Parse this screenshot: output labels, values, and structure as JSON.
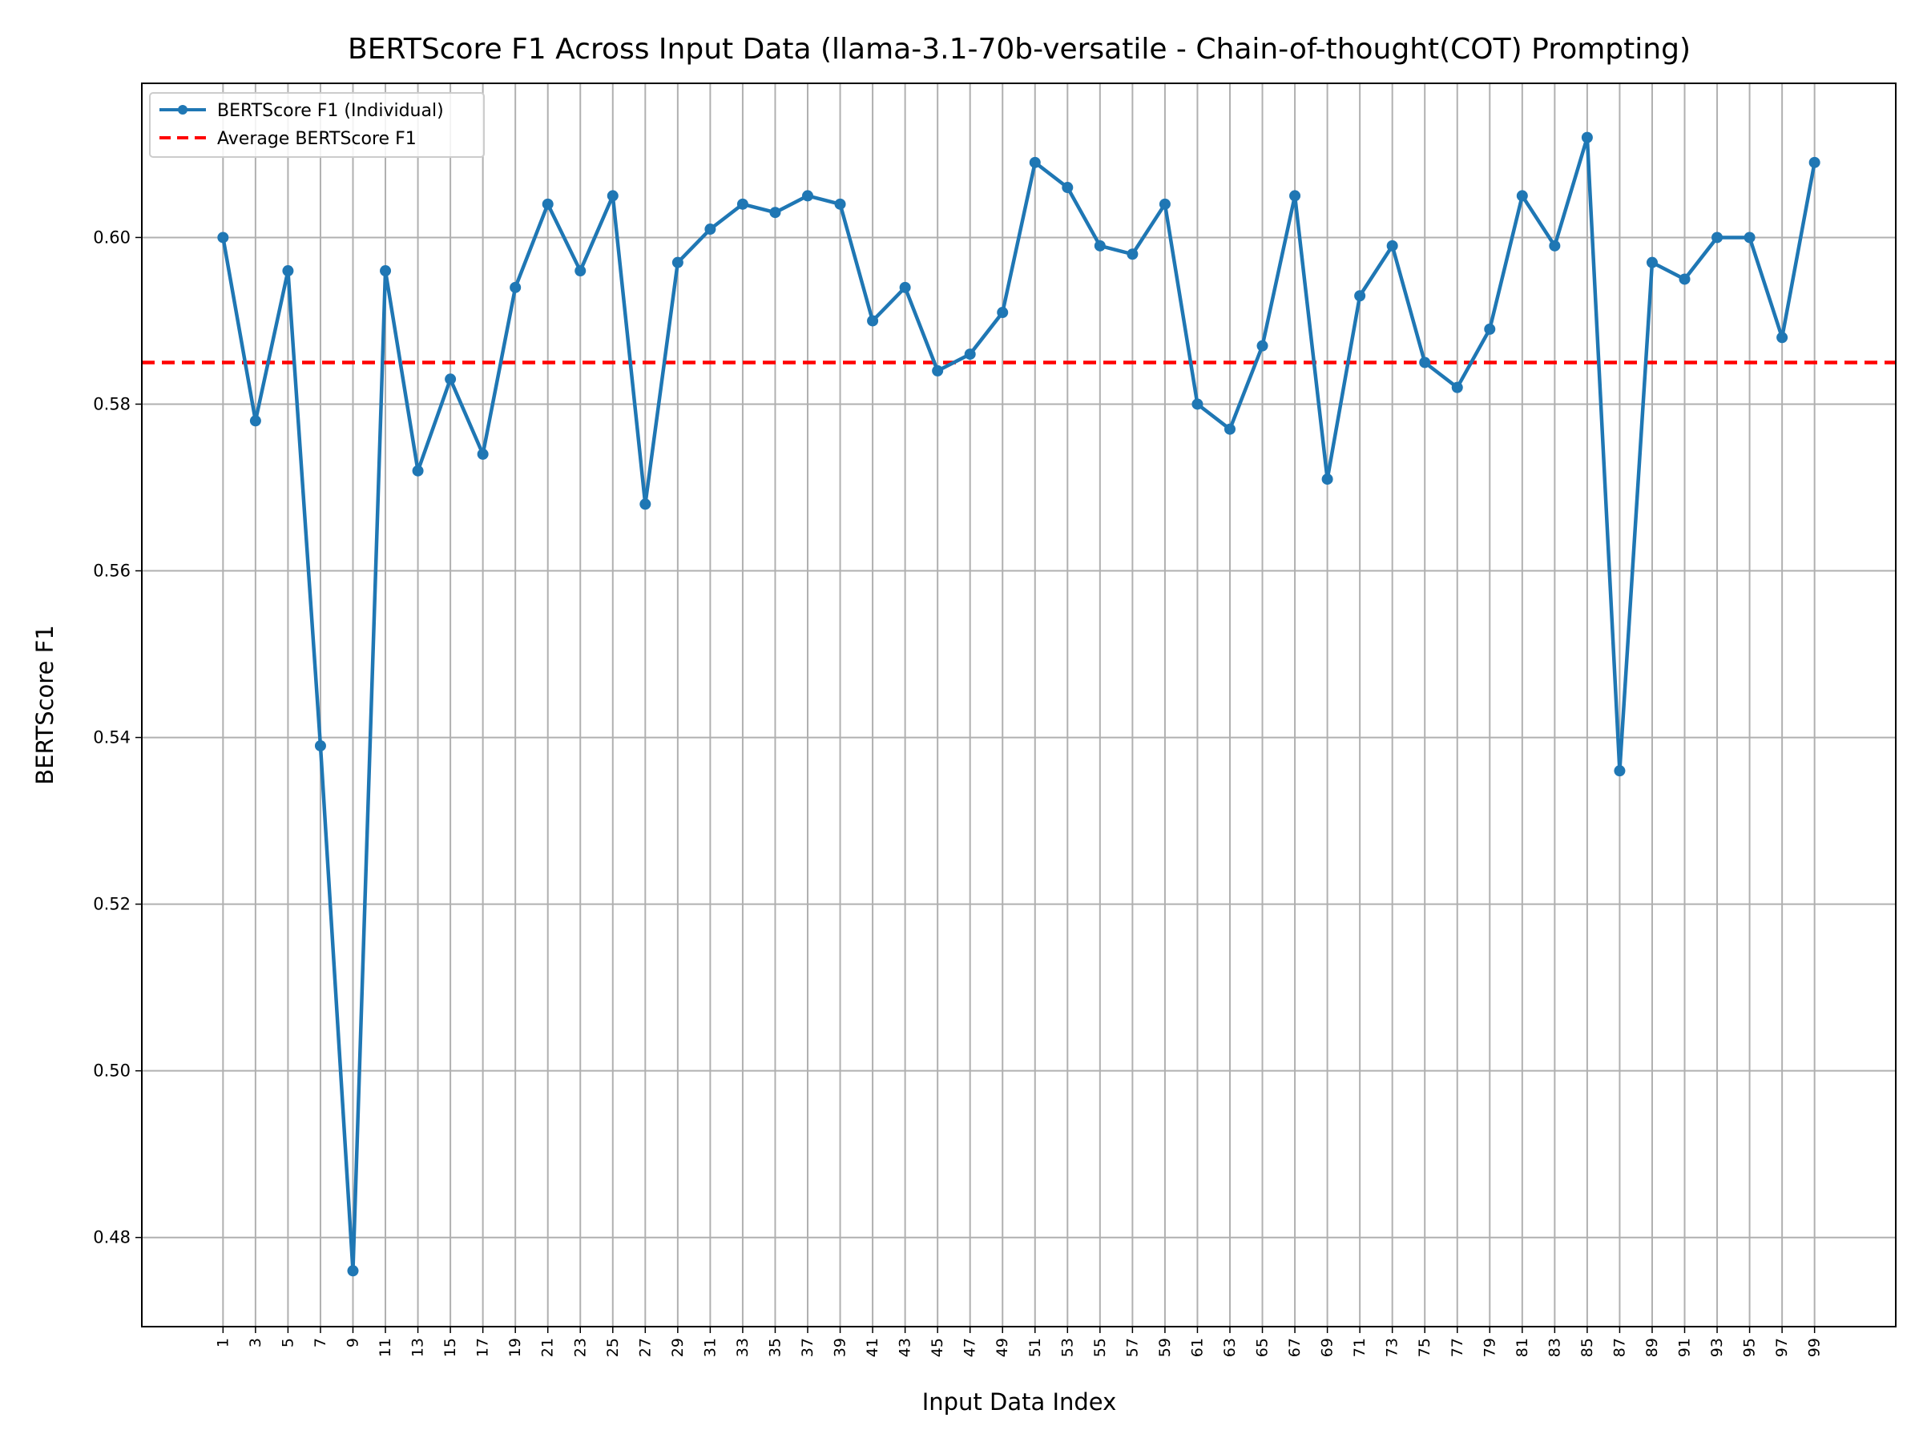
{
  "chart_data": {
    "type": "line",
    "title": "BERTScore F1 Across Input Data (llama-3.1-70b-versatile - Chain-of-thought(COT) Prompting)",
    "xlabel": "Input Data Index",
    "ylabel": "BERTScore F1",
    "x": [
      1,
      3,
      5,
      7,
      9,
      11,
      13,
      15,
      17,
      19,
      21,
      23,
      25,
      27,
      29,
      31,
      33,
      35,
      37,
      39,
      41,
      43,
      45,
      47,
      49,
      51,
      53,
      55,
      57,
      59,
      61,
      63,
      65,
      67,
      69,
      71,
      73,
      75,
      77,
      79,
      81,
      83,
      85,
      87,
      89,
      91,
      93,
      95,
      97,
      99
    ],
    "xticks": [
      "1",
      "3",
      "5",
      "7",
      "9",
      "11",
      "13",
      "15",
      "17",
      "19",
      "21",
      "23",
      "25",
      "27",
      "29",
      "31",
      "33",
      "35",
      "37",
      "39",
      "41",
      "43",
      "45",
      "47",
      "49",
      "51",
      "53",
      "55",
      "57",
      "59",
      "61",
      "63",
      "65",
      "67",
      "69",
      "71",
      "73",
      "75",
      "77",
      "79",
      "81",
      "83",
      "85",
      "87",
      "89",
      "91",
      "93",
      "95",
      "97",
      "99"
    ],
    "yticks": [
      "0.48",
      "0.50",
      "0.52",
      "0.54",
      "0.56",
      "0.58",
      "0.60"
    ],
    "ytick_values": [
      0.48,
      0.5,
      0.52,
      0.54,
      0.56,
      0.58,
      0.6
    ],
    "xlim": [
      -4,
      104
    ],
    "ylim": [
      0.4693,
      0.6185
    ],
    "grid": true,
    "legend_position": "upper-left",
    "series": [
      {
        "name": "BERTScore F1 (Individual)",
        "color": "#1f77b4",
        "style": "solid-with-markers",
        "values": [
          0.6,
          0.578,
          0.596,
          0.539,
          0.476,
          0.596,
          0.572,
          0.583,
          0.574,
          0.594,
          0.604,
          0.596,
          0.605,
          0.568,
          0.597,
          0.601,
          0.604,
          0.603,
          0.605,
          0.604,
          0.59,
          0.594,
          0.584,
          0.586,
          0.591,
          0.609,
          0.606,
          0.599,
          0.598,
          0.604,
          0.58,
          0.577,
          0.587,
          0.605,
          0.571,
          0.593,
          0.599,
          0.585,
          0.582,
          0.589,
          0.605,
          0.599,
          0.612,
          0.536,
          0.597,
          0.595,
          0.6,
          0.6,
          0.588,
          0.609
        ]
      },
      {
        "name": "Average BERTScore F1",
        "color": "#ff0000",
        "style": "dashed",
        "value": 0.585
      }
    ]
  }
}
